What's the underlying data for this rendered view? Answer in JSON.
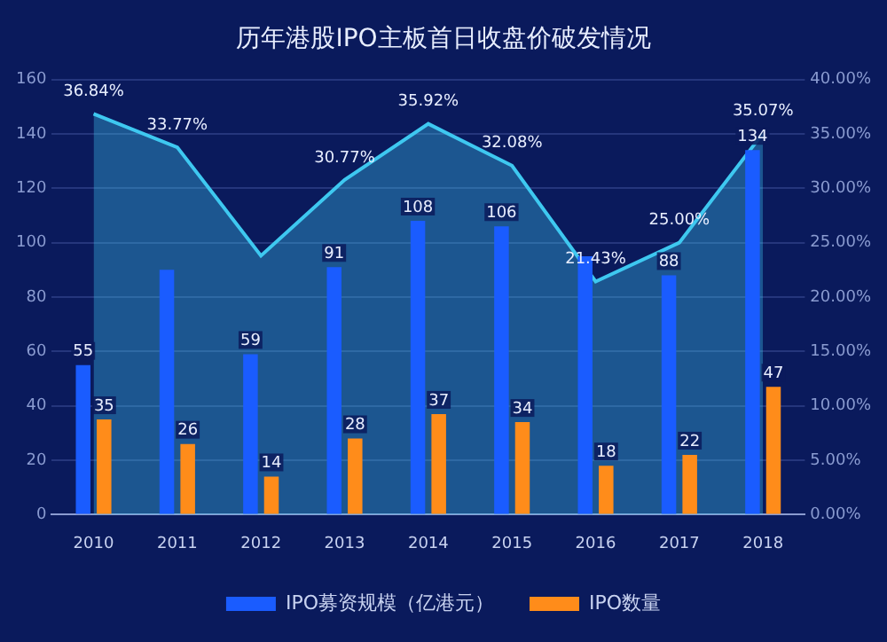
{
  "chart_data": {
    "type": "bar",
    "title": "历年港股IPO主板首日收盘价破发情况",
    "categories": [
      "2010",
      "2011",
      "2012",
      "2013",
      "2014",
      "2015",
      "2016",
      "2017",
      "2018"
    ],
    "series": [
      {
        "type": "area",
        "axis": "y2",
        "color": "#3ec8f0",
        "values": [
          36.84,
          33.77,
          23.8,
          30.77,
          35.92,
          32.08,
          21.43,
          25.0,
          35.07
        ],
        "value_labels": [
          "36.84%",
          "33.77%",
          null,
          "30.77%",
          "35.92%",
          "32.08%",
          "21.43%",
          "25.00%",
          "35.07%"
        ]
      },
      {
        "name": "IPO募资规模（亿港元）",
        "color": "#1a5cff",
        "values": [
          55,
          90,
          59,
          91,
          108,
          106,
          95,
          88,
          134
        ],
        "value_labels": [
          "55",
          null,
          "59",
          "91",
          "108",
          "106",
          null,
          "88",
          "134"
        ]
      },
      {
        "name": "IPO数量",
        "color": "#ff8c1a",
        "values": [
          35,
          26,
          14,
          28,
          37,
          34,
          18,
          22,
          47
        ],
        "value_labels": [
          "35",
          "26",
          "14",
          "28",
          "37",
          "34",
          "18",
          "22",
          "47"
        ]
      }
    ],
    "ylim": [
      0,
      160
    ],
    "yticks": [
      0,
      20,
      40,
      60,
      80,
      100,
      120,
      140,
      160
    ],
    "y2lim": [
      0,
      40
    ],
    "y2ticks": [
      {
        "value": 0,
        "label": "0.00%"
      },
      {
        "value": 5,
        "label": "5.00%"
      },
      {
        "value": 10,
        "label": "10.00%"
      },
      {
        "value": 15,
        "label": "15.00%"
      },
      {
        "value": 20,
        "label": "20.00%"
      },
      {
        "value": 25,
        "label": "25.00%"
      },
      {
        "value": 30,
        "label": "30.00%"
      },
      {
        "value": 35,
        "label": "35.00%"
      },
      {
        "value": 40,
        "label": "40.00%"
      }
    ],
    "grid": "y",
    "legend": "bottom"
  }
}
